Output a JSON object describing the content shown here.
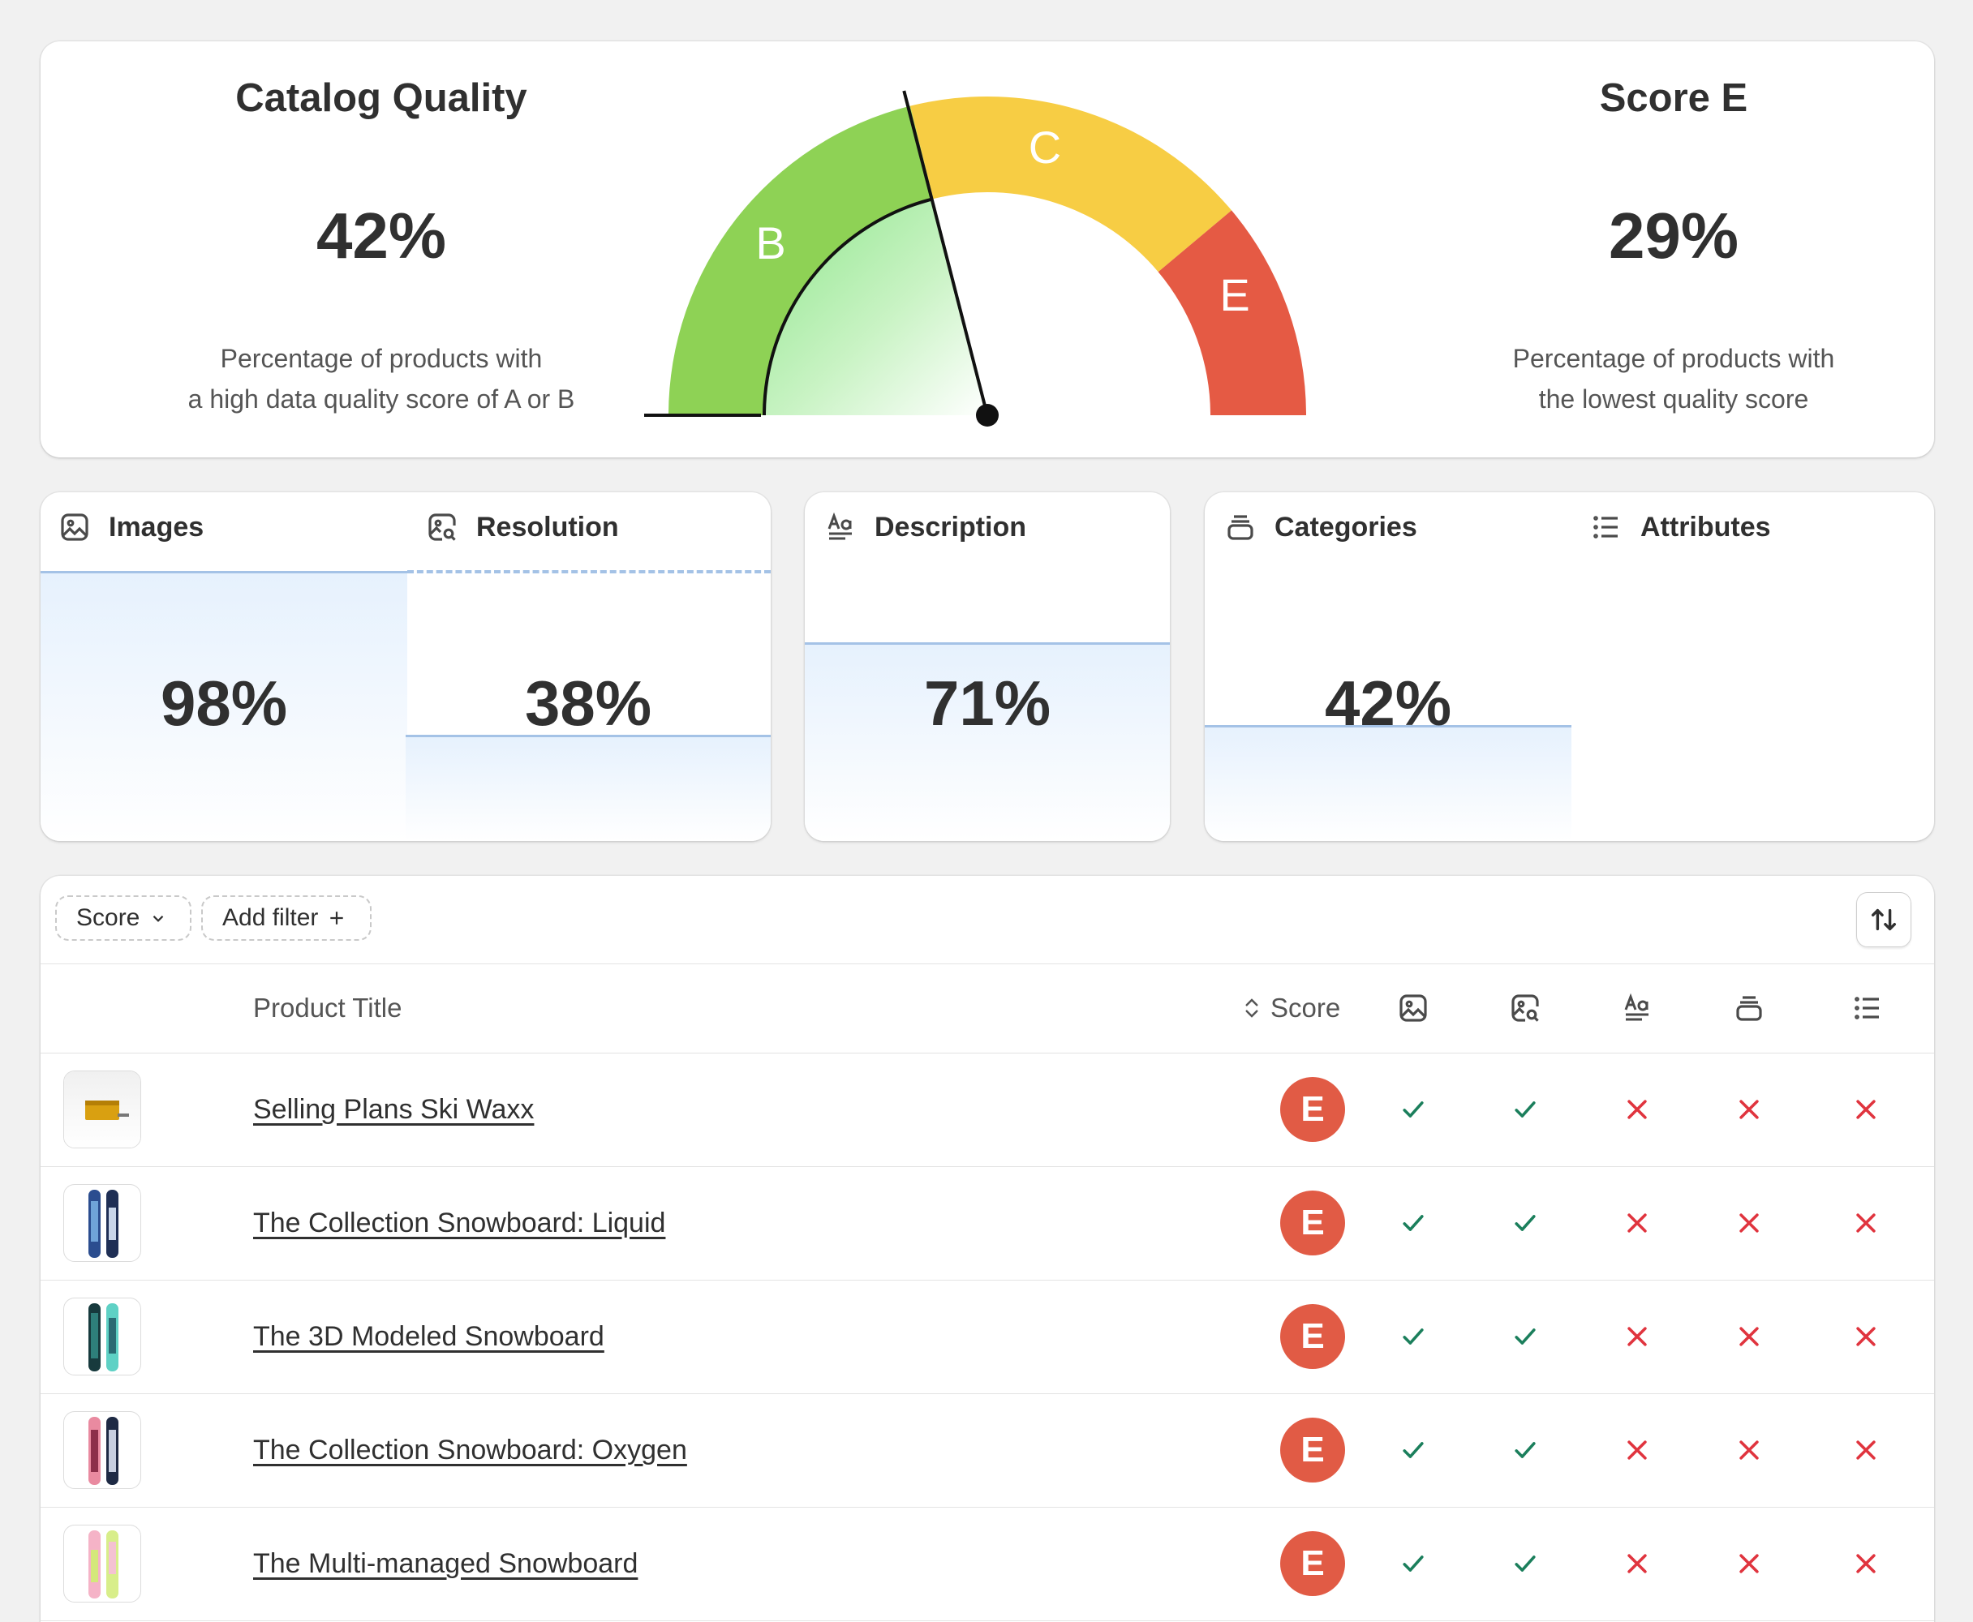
{
  "summary_left": {
    "title": "Catalog Quality",
    "value": "42%",
    "desc_line1": "Percentage of products with",
    "desc_line2": "a high data quality score of A or B"
  },
  "summary_right": {
    "title": "Score E",
    "value": "29%",
    "desc_line1": "Percentage of products with",
    "desc_line2": "the lowest quality score"
  },
  "gauge": {
    "grades": [
      "B",
      "C",
      "E"
    ],
    "needle_value_percent": 42,
    "colors": {
      "B": "#8ed255",
      "C": "#f7cd44",
      "E": "#e55a44"
    }
  },
  "metrics": {
    "images": {
      "label": "Images",
      "value": "98%",
      "level": 0.98
    },
    "resolution": {
      "label": "Resolution",
      "value": "38%",
      "level": 0.38
    },
    "description": {
      "label": "Description",
      "value": "71%",
      "level": 0.71
    },
    "categories": {
      "label": "Categories",
      "value": "42%",
      "level": 0.42
    },
    "attributes": {
      "label": "Attributes"
    }
  },
  "filters": {
    "score_chip": "Score",
    "add_filter": "Add filter"
  },
  "table": {
    "col_title": "Product Title",
    "col_score": "Score",
    "rows": [
      {
        "title": "Selling Plans Ski Waxx",
        "score": "E",
        "images": true,
        "resolution": true,
        "description": false,
        "categories": false,
        "attributes": false
      },
      {
        "title": "The Collection Snowboard: Liquid",
        "score": "E",
        "images": true,
        "resolution": true,
        "description": false,
        "categories": false,
        "attributes": false
      },
      {
        "title": "The 3D Modeled Snowboard",
        "score": "E",
        "images": true,
        "resolution": true,
        "description": false,
        "categories": false,
        "attributes": false
      },
      {
        "title": "The Collection Snowboard: Oxygen",
        "score": "E",
        "images": true,
        "resolution": true,
        "description": false,
        "categories": false,
        "attributes": false
      },
      {
        "title": "The Multi-managed Snowboard",
        "score": "E",
        "images": true,
        "resolution": true,
        "description": false,
        "categories": false,
        "attributes": false
      }
    ]
  }
}
